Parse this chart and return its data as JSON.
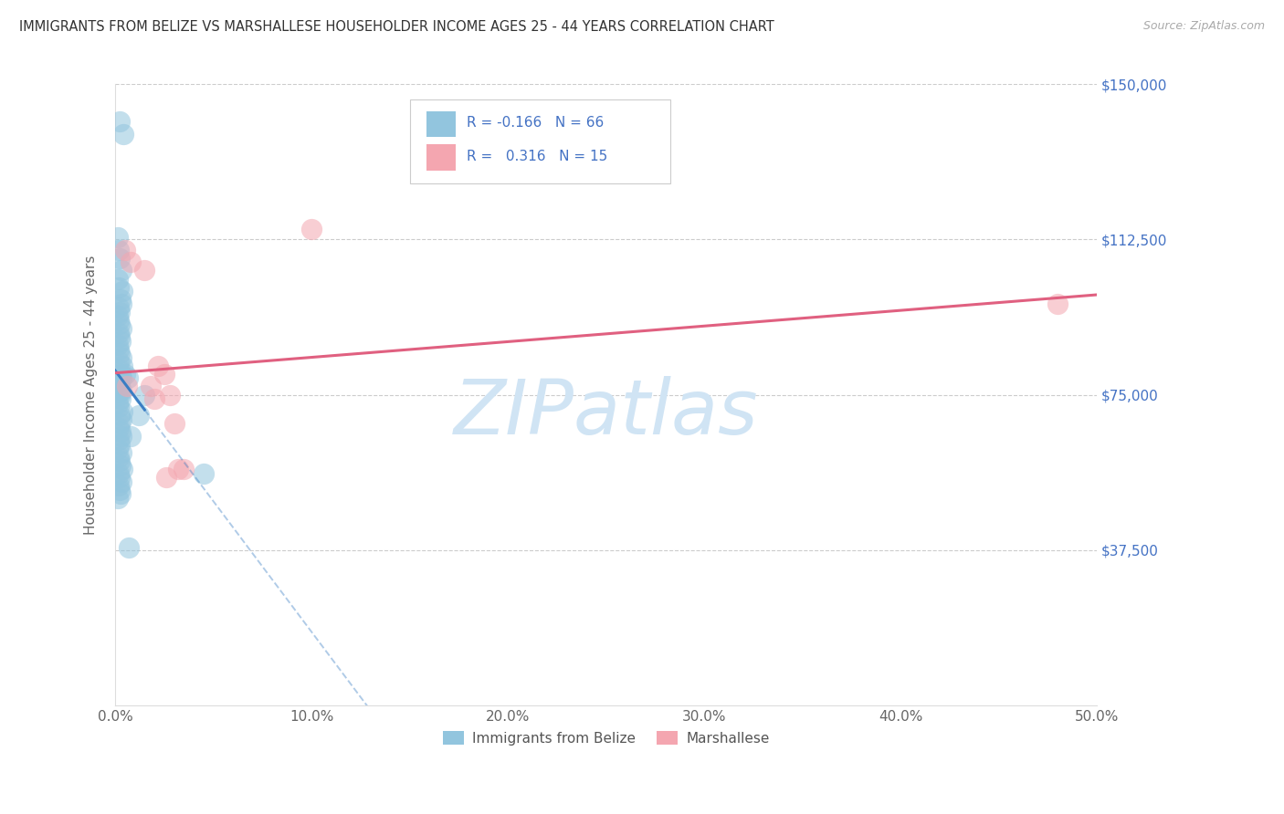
{
  "title": "IMMIGRANTS FROM BELIZE VS MARSHALLESE HOUSEHOLDER INCOME AGES 25 - 44 YEARS CORRELATION CHART",
  "source": "Source: ZipAtlas.com",
  "R1": -0.166,
  "N1": 66,
  "R2": 0.316,
  "N2": 15,
  "color1": "#92C5DE",
  "color2": "#F4A6B0",
  "color1_line": "#3A7EC4",
  "color2_line": "#E06080",
  "watermark_color": "#D0E4F4",
  "legend_label1": "Immigrants from Belize",
  "legend_label2": "Marshallese",
  "xlim": [
    0,
    50
  ],
  "ylim": [
    0,
    150000
  ],
  "xticks": [
    0,
    10,
    20,
    30,
    40,
    50
  ],
  "xticklabels": [
    "0.0%",
    "10.0%",
    "20.0%",
    "30.0%",
    "40.0%",
    "50.0%"
  ],
  "yticks": [
    0,
    37500,
    75000,
    112500,
    150000
  ],
  "yticklabels_right": [
    "",
    "$37,500",
    "$75,000",
    "$112,500",
    "$150,000"
  ],
  "ylabel": "Householder Income Ages 25 - 44 years",
  "gridlines": [
    37500,
    75000,
    112500,
    150000
  ],
  "belize_x": [
    0.22,
    0.42,
    0.15,
    0.18,
    0.25,
    0.3,
    0.12,
    0.2,
    0.35,
    0.28,
    0.32,
    0.18,
    0.22,
    0.15,
    0.2,
    0.25,
    0.3,
    0.18,
    0.22,
    0.28,
    0.15,
    0.2,
    0.25,
    0.3,
    0.18,
    0.35,
    0.22,
    0.28,
    0.32,
    0.2,
    0.25,
    0.3,
    0.18,
    0.22,
    0.28,
    0.15,
    0.2,
    0.35,
    0.25,
    0.3,
    0.22,
    0.18,
    0.28,
    0.32,
    0.2,
    0.25,
    0.15,
    0.3,
    0.18,
    0.22,
    0.28,
    0.35,
    0.2,
    0.25,
    0.3,
    0.18,
    0.22,
    0.28,
    0.15,
    0.5,
    0.65,
    1.5,
    1.2,
    0.8,
    0.7,
    4.5
  ],
  "belize_y": [
    141000,
    138000,
    113000,
    110000,
    108000,
    105000,
    103000,
    101000,
    100000,
    98000,
    97000,
    96000,
    95000,
    94000,
    93000,
    92000,
    91000,
    90000,
    89000,
    88000,
    87000,
    86000,
    85000,
    84000,
    83000,
    82000,
    81000,
    80000,
    79000,
    78000,
    77000,
    76000,
    75500,
    75000,
    74000,
    73000,
    72000,
    71000,
    70000,
    69000,
    68000,
    67000,
    66000,
    65000,
    64000,
    63000,
    62000,
    61000,
    60000,
    59000,
    58000,
    57000,
    56000,
    55000,
    54000,
    53000,
    52000,
    51000,
    50000,
    80000,
    79000,
    75000,
    70000,
    65000,
    38000,
    56000
  ],
  "marshallese_x": [
    0.5,
    0.8,
    0.6,
    1.5,
    2.0,
    2.5,
    3.0,
    3.5,
    10.0,
    2.8,
    2.2,
    1.8,
    3.2,
    2.6,
    48.0
  ],
  "marshallese_y": [
    110000,
    107000,
    77000,
    105000,
    74000,
    80000,
    68000,
    57000,
    115000,
    75000,
    82000,
    77000,
    57000,
    55000,
    97000
  ],
  "seed": 0
}
